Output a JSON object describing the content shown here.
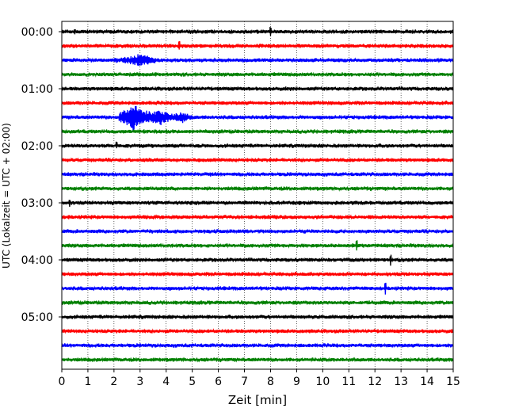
{
  "chart_data": {
    "type": "line",
    "title": "",
    "xlabel": "Zeit  [min]",
    "ylabel": "UTC (Lokalzeit = UTC + 02:00)",
    "xlim": [
      0,
      15
    ],
    "x_ticks": [
      "0",
      "1",
      "2",
      "3",
      "4",
      "5",
      "6",
      "7",
      "8",
      "9",
      "10",
      "11",
      "12",
      "13",
      "14",
      "15"
    ],
    "grid": "vertical dotted",
    "trace_interval_minutes": 15,
    "hour_labels": [
      "00:00",
      "01:00",
      "02:00",
      "03:00",
      "04:00",
      "05:00"
    ],
    "trace_colors": [
      "#000000",
      "#ff0000",
      "#0000ff",
      "#008000"
    ],
    "events": [
      {
        "trace": 2,
        "start_min": 1.8,
        "peak_min": 3.0,
        "end_min": 3.6,
        "amplitude": 0.35
      },
      {
        "trace": 6,
        "start_min": 2.2,
        "peak_min": 2.75,
        "end_min": 5.0,
        "amplitude": 0.85
      }
    ],
    "spikes": [
      {
        "trace": 0,
        "x": 0.5
      },
      {
        "trace": 0,
        "x": 8.0
      },
      {
        "trace": 1,
        "x": 4.5
      },
      {
        "trace": 8,
        "x": 2.1
      },
      {
        "trace": 12,
        "x": 0.3
      },
      {
        "trace": 15,
        "x": 11.3
      },
      {
        "trace": 16,
        "x": 12.6
      },
      {
        "trace": 18,
        "x": 12.4
      }
    ]
  }
}
